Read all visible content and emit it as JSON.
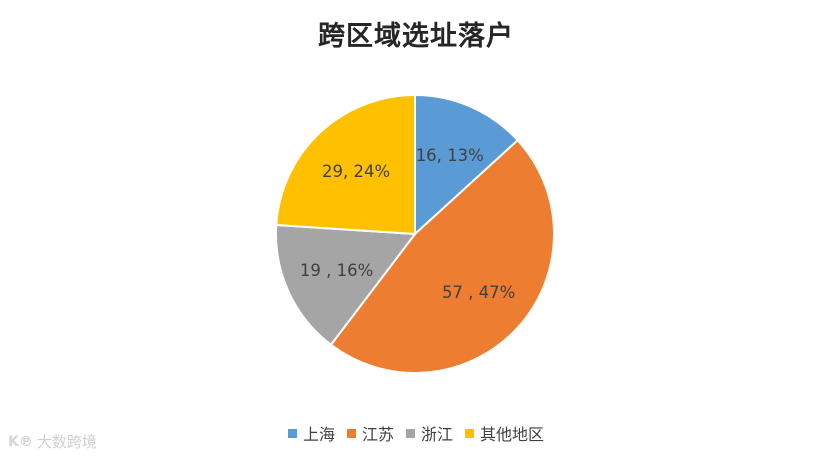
{
  "chart_data": {
    "type": "pie",
    "title": "跨区域选址落户",
    "slices": [
      {
        "name": "上海",
        "value": 16,
        "label": "16, 13%",
        "color": "#5b9bd5"
      },
      {
        "name": "江苏",
        "value": 57,
        "label": "57 , 47%",
        "color": "#ed7d31"
      },
      {
        "name": "浙江",
        "value": 19,
        "label": "19 , 16%",
        "color": "#a5a5a5"
      },
      {
        "name": "其他地区",
        "value": 29,
        "label": "29, 24%",
        "color": "#ffc000"
      }
    ],
    "legend_position": "bottom"
  },
  "watermark": {
    "text": "大数跨境",
    "logo": "K℗"
  }
}
